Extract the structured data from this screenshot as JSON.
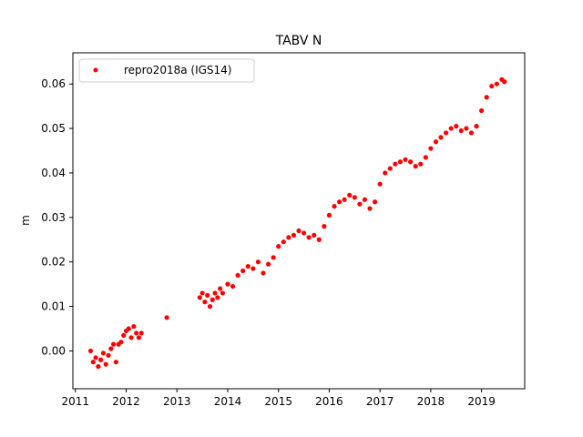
{
  "chart_data": {
    "type": "scatter",
    "title": "TABV N",
    "xlabel": "",
    "ylabel": "m",
    "xlim": [
      2010.95,
      2019.85
    ],
    "ylim": [
      -0.0085,
      0.067
    ],
    "xticks": [
      2011,
      2012,
      2013,
      2014,
      2015,
      2016,
      2017,
      2018,
      2019
    ],
    "yticks": [
      0.0,
      0.01,
      0.02,
      0.03,
      0.04,
      0.05,
      0.06
    ],
    "ytick_labels": [
      "0.00",
      "0.01",
      "0.02",
      "0.03",
      "0.04",
      "0.05",
      "0.06"
    ],
    "grid": false,
    "legend": "top-left",
    "colors": {
      "series": "#ff0000",
      "axes": "#000000",
      "legend_border": "#cccccc"
    },
    "series": [
      {
        "name": "repro2018a (IGS14)",
        "marker": "circle",
        "x": [
          2011.3,
          2011.35,
          2011.4,
          2011.45,
          2011.5,
          2011.55,
          2011.6,
          2011.65,
          2011.7,
          2011.75,
          2011.8,
          2011.85,
          2011.9,
          2011.95,
          2012.0,
          2012.05,
          2012.1,
          2012.15,
          2012.2,
          2012.25,
          2012.3,
          2012.8,
          2013.45,
          2013.5,
          2013.55,
          2013.6,
          2013.65,
          2013.7,
          2013.75,
          2013.8,
          2013.85,
          2013.9,
          2014.0,
          2014.1,
          2014.2,
          2014.3,
          2014.4,
          2014.5,
          2014.6,
          2014.7,
          2014.8,
          2014.9,
          2015.0,
          2015.1,
          2015.2,
          2015.3,
          2015.4,
          2015.5,
          2015.6,
          2015.7,
          2015.8,
          2015.9,
          2016.0,
          2016.1,
          2016.2,
          2016.3,
          2016.4,
          2016.5,
          2016.6,
          2016.7,
          2016.8,
          2016.9,
          2017.0,
          2017.1,
          2017.2,
          2017.3,
          2017.4,
          2017.5,
          2017.6,
          2017.7,
          2017.8,
          2017.9,
          2018.0,
          2018.1,
          2018.2,
          2018.3,
          2018.4,
          2018.5,
          2018.6,
          2018.7,
          2018.8,
          2018.9,
          2019.0,
          2019.1,
          2019.2,
          2019.3,
          2019.4,
          2019.45
        ],
        "y": [
          0.0,
          -0.0025,
          -0.0015,
          -0.0035,
          -0.002,
          -0.0005,
          -0.003,
          -0.001,
          0.0005,
          0.0015,
          -0.0025,
          0.0015,
          0.002,
          0.0035,
          0.0045,
          0.005,
          0.003,
          0.0055,
          0.004,
          0.003,
          0.004,
          0.0075,
          0.012,
          0.013,
          0.011,
          0.0125,
          0.01,
          0.0115,
          0.013,
          0.012,
          0.014,
          0.013,
          0.015,
          0.0145,
          0.017,
          0.018,
          0.019,
          0.0185,
          0.02,
          0.0175,
          0.0195,
          0.021,
          0.0235,
          0.0245,
          0.0255,
          0.026,
          0.027,
          0.0265,
          0.0255,
          0.026,
          0.025,
          0.028,
          0.0305,
          0.0325,
          0.0335,
          0.034,
          0.035,
          0.0345,
          0.033,
          0.034,
          0.032,
          0.0335,
          0.0375,
          0.04,
          0.041,
          0.042,
          0.0425,
          0.043,
          0.0425,
          0.0415,
          0.042,
          0.0435,
          0.0455,
          0.047,
          0.048,
          0.049,
          0.05,
          0.0505,
          0.0495,
          0.05,
          0.049,
          0.0505,
          0.054,
          0.057,
          0.0595,
          0.06,
          0.061,
          0.0605
        ]
      }
    ]
  }
}
